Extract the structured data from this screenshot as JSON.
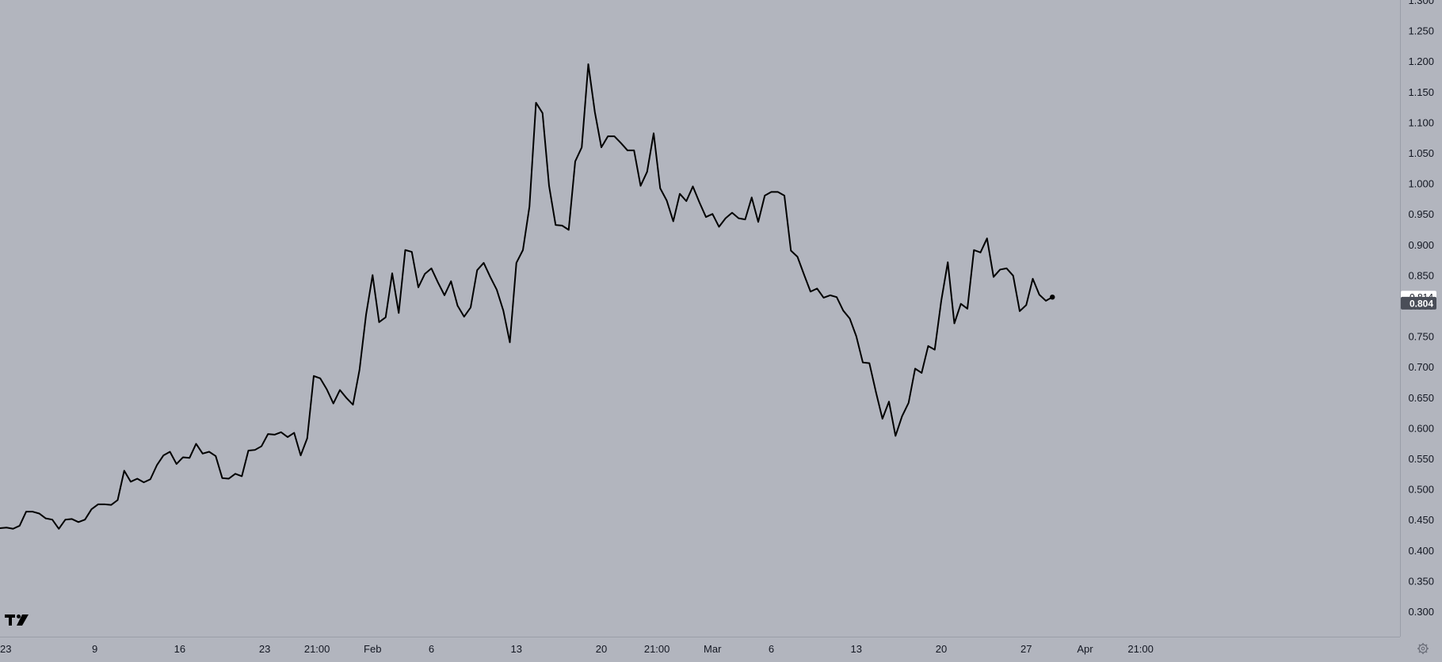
{
  "colors": {
    "background": "#b2b5be",
    "line": "#000000",
    "axis_text": "#131722",
    "badge_light_bg": "#ffffff",
    "badge_dark_bg": "#4a4e58",
    "badge_dark_text": "#ffffff"
  },
  "logo": {
    "text": "TV",
    "icon": "tradingview-logo-icon"
  },
  "settings": {
    "icon": "gear-icon"
  },
  "price_badges": [
    {
      "label": "0.814",
      "value": 0.814,
      "style": "light"
    },
    {
      "label": "0.804",
      "value": 0.804,
      "style": "dark"
    }
  ],
  "chart_data": {
    "type": "line",
    "title": "",
    "xlabel": "",
    "ylabel": "",
    "ylim": [
      0.27,
      1.31
    ],
    "grid": false,
    "legend": "none",
    "y_ticks": [
      "1.300",
      "1.250",
      "1.200",
      "1.150",
      "1.100",
      "1.050",
      "1.000",
      "0.950",
      "0.900",
      "0.850",
      "0.800",
      "0.750",
      "0.700",
      "0.650",
      "0.600",
      "0.550",
      "0.500",
      "0.450",
      "0.400",
      "0.350",
      "0.300"
    ],
    "x_tick_labels": [
      {
        "label": "23",
        "i": 0
      },
      {
        "label": "9",
        "i": 14.5
      },
      {
        "label": "16",
        "i": 27.5
      },
      {
        "label": "23",
        "i": 40.5
      },
      {
        "label": "21:00",
        "i": 48.5
      },
      {
        "label": "Feb",
        "i": 57
      },
      {
        "label": "6",
        "i": 66
      },
      {
        "label": "13",
        "i": 79
      },
      {
        "label": "20",
        "i": 92
      },
      {
        "label": "21:00",
        "i": 100.5
      },
      {
        "label": "Mar",
        "i": 109
      },
      {
        "label": "6",
        "i": 118
      },
      {
        "label": "13",
        "i": 131
      },
      {
        "label": "20",
        "i": 144
      },
      {
        "label": "27",
        "i": 157
      },
      {
        "label": "Apr",
        "i": 166
      },
      {
        "label": "21:00",
        "i": 174.5
      }
    ],
    "series": [
      {
        "last_point_marker": true,
        "values": [
          0.436,
          0.437,
          0.435,
          0.44,
          0.463,
          0.463,
          0.46,
          0.452,
          0.45,
          0.435,
          0.45,
          0.451,
          0.446,
          0.45,
          0.467,
          0.475,
          0.475,
          0.474,
          0.482,
          0.53,
          0.512,
          0.517,
          0.511,
          0.516,
          0.539,
          0.555,
          0.561,
          0.541,
          0.552,
          0.551,
          0.574,
          0.558,
          0.561,
          0.554,
          0.518,
          0.517,
          0.525,
          0.521,
          0.563,
          0.564,
          0.57,
          0.59,
          0.589,
          0.593,
          0.585,
          0.592,
          0.555,
          0.583,
          0.685,
          0.681,
          0.663,
          0.64,
          0.662,
          0.649,
          0.638,
          0.695,
          0.785,
          0.85,
          0.773,
          0.781,
          0.853,
          0.788,
          0.891,
          0.888,
          0.83,
          0.852,
          0.861,
          0.838,
          0.817,
          0.84,
          0.8,
          0.782,
          0.797,
          0.858,
          0.87,
          0.847,
          0.826,
          0.792,
          0.74,
          0.87,
          0.891,
          0.962,
          1.132,
          1.115,
          0.996,
          0.932,
          0.931,
          0.924,
          1.036,
          1.059,
          1.195,
          1.117,
          1.059,
          1.077,
          1.077,
          1.066,
          1.054,
          1.054,
          0.996,
          1.019,
          1.082,
          0.992,
          0.972,
          0.938,
          0.983,
          0.971,
          0.995,
          0.969,
          0.945,
          0.95,
          0.929,
          0.943,
          0.952,
          0.943,
          0.941,
          0.977,
          0.937,
          0.98,
          0.986,
          0.986,
          0.98,
          0.89,
          0.88,
          0.851,
          0.823,
          0.828,
          0.813,
          0.817,
          0.814,
          0.792,
          0.779,
          0.75,
          0.707,
          0.706,
          0.659,
          0.615,
          0.643,
          0.587,
          0.619,
          0.641,
          0.697,
          0.69,
          0.734,
          0.728,
          0.808,
          0.871,
          0.771,
          0.803,
          0.795,
          0.891,
          0.887,
          0.91,
          0.847,
          0.859,
          0.861,
          0.849,
          0.791,
          0.801,
          0.844,
          0.818,
          0.808,
          0.814
        ]
      }
    ]
  }
}
